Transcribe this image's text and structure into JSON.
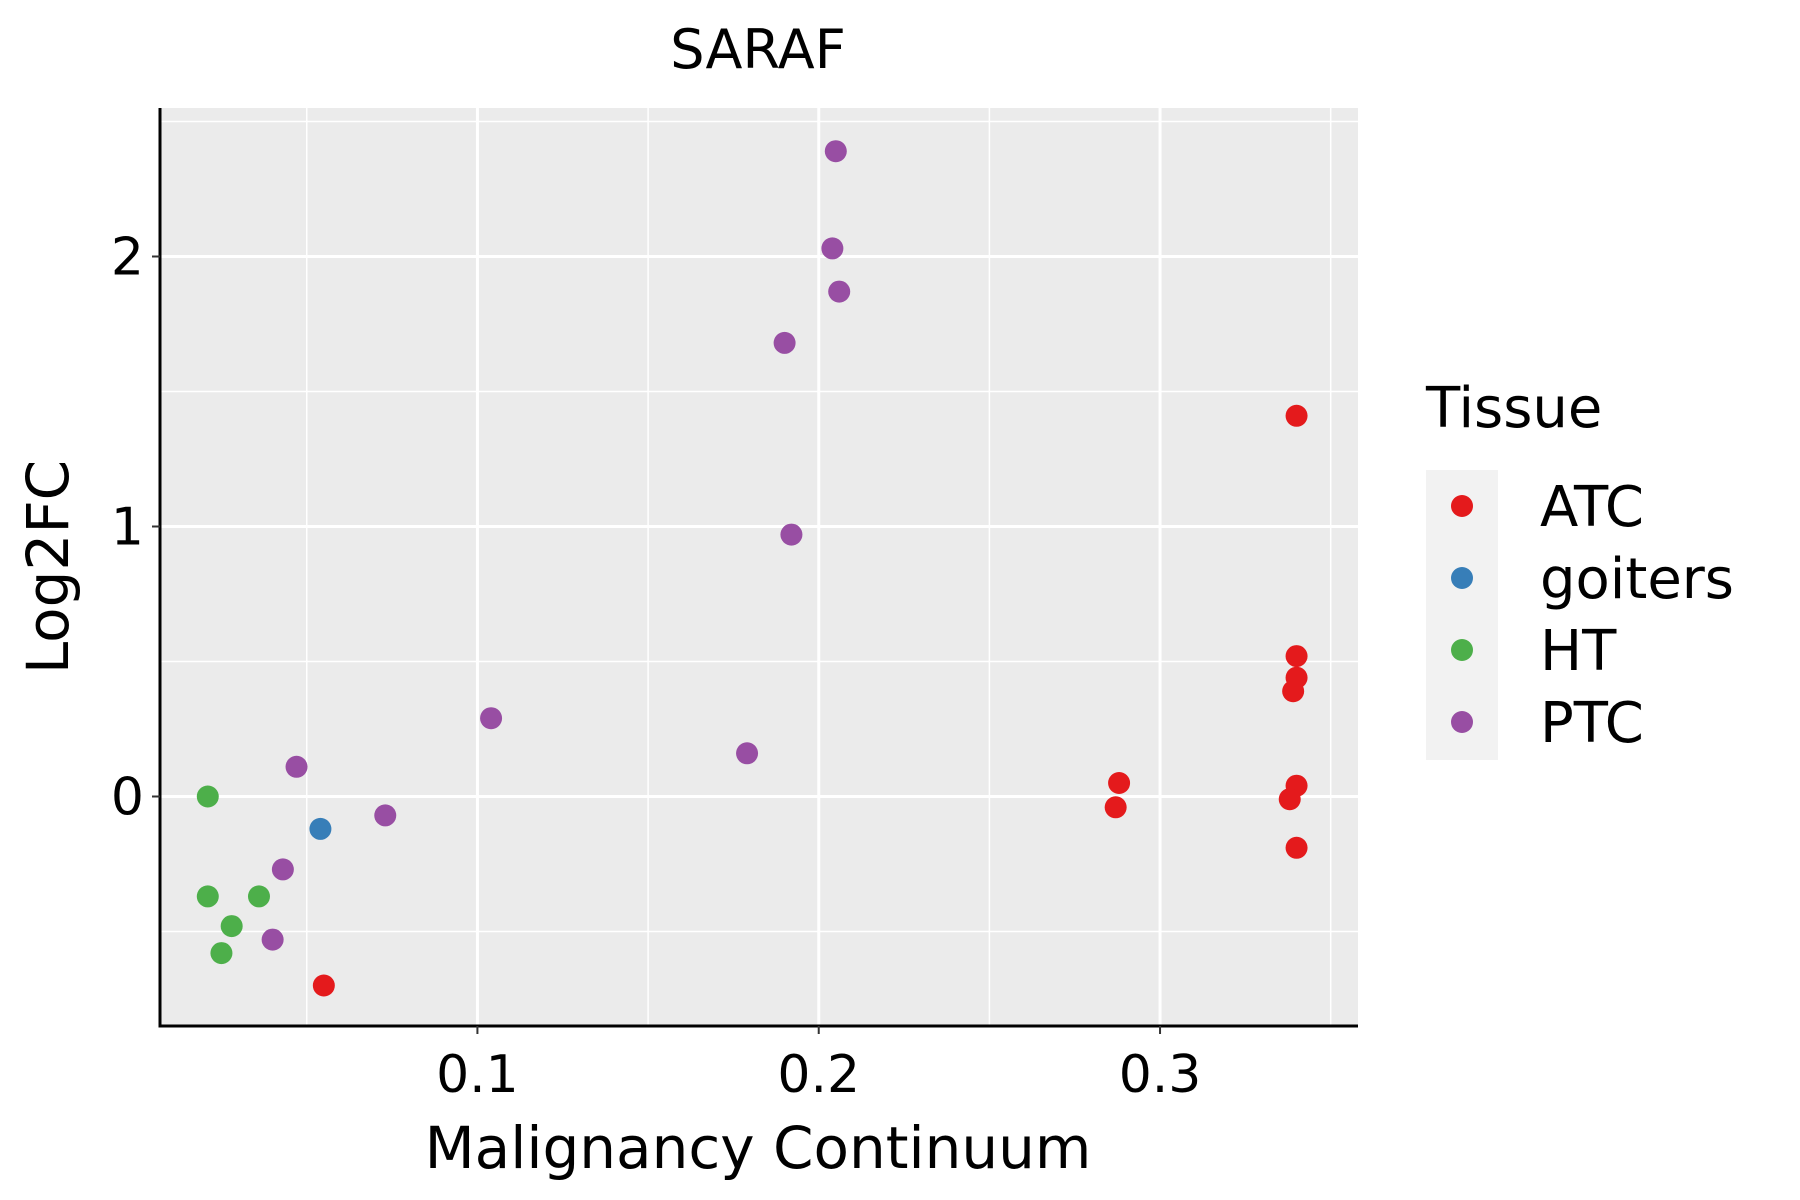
{
  "chart_data": {
    "type": "scatter",
    "title": "SARAF",
    "xlabel": "Malignancy Continuum",
    "ylabel": "Log2FC",
    "xlim": [
      0.007,
      0.358
    ],
    "ylim": [
      -0.85,
      2.55
    ],
    "x_ticks": [
      0.1,
      0.2,
      0.3
    ],
    "x_tick_labels": [
      "0.1",
      "0.2",
      "0.3"
    ],
    "x_minor": [
      0.05,
      0.15,
      0.25,
      0.35
    ],
    "y_ticks": [
      0,
      1,
      2
    ],
    "y_tick_labels": [
      "0",
      "1",
      "2"
    ],
    "y_minor": [
      -0.5,
      0.5,
      1.5,
      2.5
    ],
    "grid": true,
    "legend": {
      "title": "Tissue",
      "position": "right",
      "entries": [
        {
          "name": "ATC",
          "color": "#E41A1C"
        },
        {
          "name": "goiters",
          "color": "#377EB8"
        },
        {
          "name": "HT",
          "color": "#4DAF4A"
        },
        {
          "name": "PTC",
          "color": "#984EA3"
        }
      ]
    },
    "series": [
      {
        "name": "ATC",
        "color": "#E41A1C",
        "points": [
          {
            "x": 0.055,
            "y": -0.7
          },
          {
            "x": 0.288,
            "y": 0.05
          },
          {
            "x": 0.287,
            "y": -0.04
          },
          {
            "x": 0.34,
            "y": 1.41
          },
          {
            "x": 0.34,
            "y": 0.52
          },
          {
            "x": 0.34,
            "y": 0.44
          },
          {
            "x": 0.339,
            "y": 0.39
          },
          {
            "x": 0.34,
            "y": 0.04
          },
          {
            "x": 0.338,
            "y": -0.01
          },
          {
            "x": 0.34,
            "y": -0.19
          }
        ]
      },
      {
        "name": "goiters",
        "color": "#377EB8",
        "points": [
          {
            "x": 0.054,
            "y": -0.12
          }
        ]
      },
      {
        "name": "HT",
        "color": "#4DAF4A",
        "points": [
          {
            "x": 0.021,
            "y": 0.0
          },
          {
            "x": 0.021,
            "y": -0.37
          },
          {
            "x": 0.036,
            "y": -0.37
          },
          {
            "x": 0.028,
            "y": -0.48
          },
          {
            "x": 0.025,
            "y": -0.58
          }
        ]
      },
      {
        "name": "PTC",
        "color": "#984EA3",
        "points": [
          {
            "x": 0.205,
            "y": 2.39
          },
          {
            "x": 0.204,
            "y": 2.03
          },
          {
            "x": 0.206,
            "y": 1.87
          },
          {
            "x": 0.19,
            "y": 1.68
          },
          {
            "x": 0.192,
            "y": 0.97
          },
          {
            "x": 0.104,
            "y": 0.29
          },
          {
            "x": 0.179,
            "y": 0.16
          },
          {
            "x": 0.047,
            "y": 0.11
          },
          {
            "x": 0.073,
            "y": -0.07
          },
          {
            "x": 0.043,
            "y": -0.27
          },
          {
            "x": 0.04,
            "y": -0.53
          }
        ]
      }
    ]
  }
}
